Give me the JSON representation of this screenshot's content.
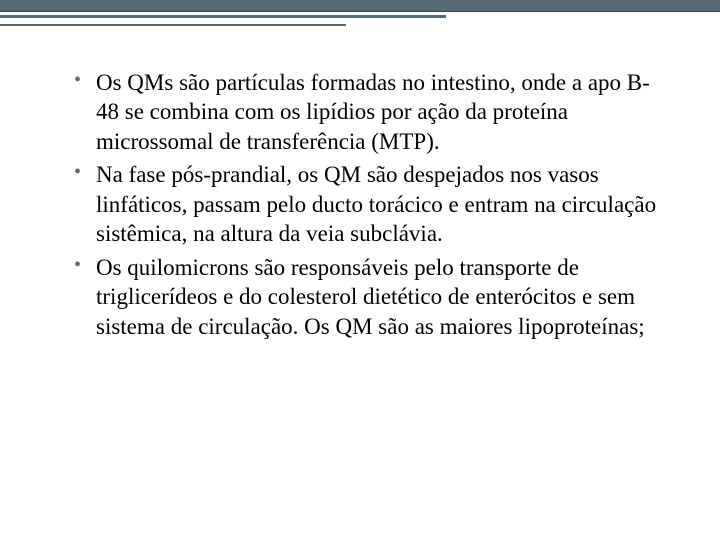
{
  "slide": {
    "bullets": [
      "Os QMs são partículas formadas no intestino, onde a apo B-48 se combina com os lipídios por ação da proteína microssomal de transferência (MTP).",
      "Na fase pós-prandial, os QM são despejados nos vasos linfáticos, passam pelo ducto torácico e entram na circulação sistêmica, na altura da veia subclávia.",
      "Os quilomicrons são responsáveis pelo transporte de triglicerídeos e do colesterol dietético de enterócitos e sem sistema de circulação. Os QM são as maiores lipoproteínas;"
    ]
  },
  "styling": {
    "header_bar_color": "#546a78",
    "bullet_color": "#5a6b6b",
    "text_color": "#000000",
    "background_color": "#ffffff",
    "font_family": "Georgia, serif",
    "font_size_pt": 18,
    "line_height": 1.28,
    "header_line3_width_pct": 62,
    "header_line4_width_pct": 48
  }
}
